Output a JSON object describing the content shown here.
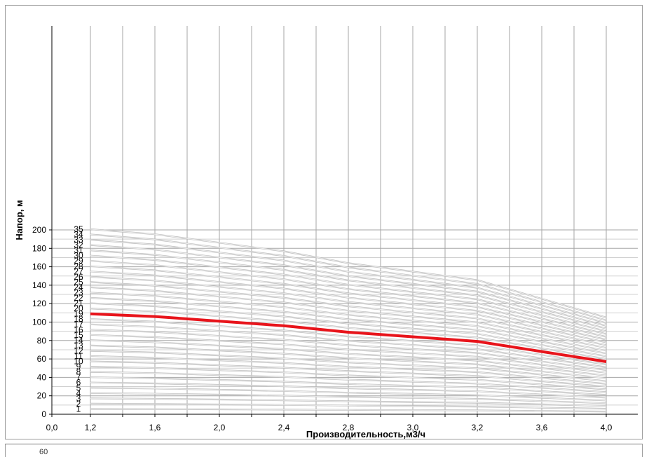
{
  "chart_data": {
    "type": "line",
    "title": "",
    "xlabel": "Производительность,м3/ч",
    "ylabel": "Напор, м",
    "xlim": [
      0.0,
      4.0
    ],
    "ylim": [
      0,
      210
    ],
    "x_ticks": [
      "0,0",
      "1,2",
      "1,6",
      "2,0",
      "2,4",
      "2,8",
      "3,0",
      "3,2",
      "3,6",
      "4,0"
    ],
    "y_ticks": [
      "0",
      "20",
      "40",
      "60",
      "80",
      "100",
      "120",
      "140",
      "160",
      "180",
      "200"
    ],
    "grid": true,
    "stage_labels": [
      "1",
      "2",
      "3",
      "4",
      "5",
      "6",
      "7",
      "8",
      "9",
      "10",
      "11",
      "12",
      "13",
      "14",
      "15",
      "16",
      "17",
      "18",
      "19",
      "20",
      "21",
      "22",
      "23",
      "24",
      "25",
      "26",
      "27",
      "28",
      "29",
      "30",
      "31",
      "32",
      "33",
      "34",
      "35"
    ],
    "x": [
      1.2,
      1.6,
      2.0,
      2.4,
      2.8,
      3.0,
      3.2,
      3.6,
      4.0
    ],
    "highlighted_series": {
      "name": "19",
      "color": "#e8141b",
      "values": [
        109,
        106,
        101,
        96,
        89,
        84,
        79,
        68,
        57
      ]
    },
    "series_color": "#bdbdbd"
  },
  "bottom_strip": {
    "partial_text": "60"
  }
}
